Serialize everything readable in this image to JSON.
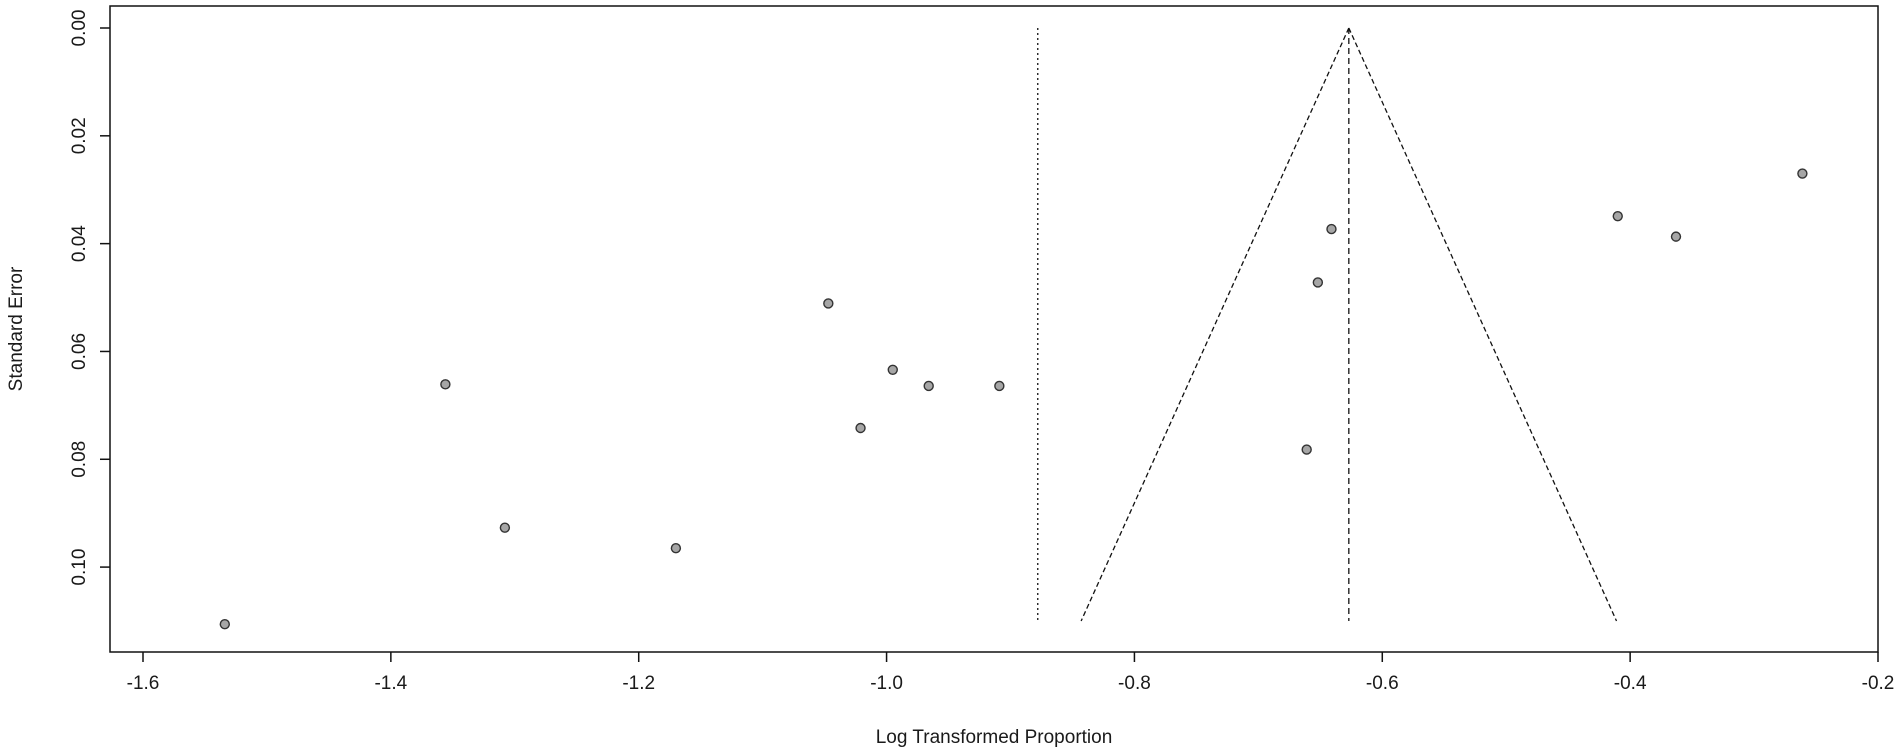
{
  "chart_data": {
    "type": "scatter",
    "title": "",
    "xlabel": "Log Transformed Proportion",
    "ylabel": "Standard Error",
    "xlim": [
      -1.6,
      -0.2
    ],
    "ylim": [
      0.0,
      0.11
    ],
    "y_reversed": true,
    "grid": false,
    "x_ticks": [
      {
        "value": -1.6,
        "label": "-1.6"
      },
      {
        "value": -1.4,
        "label": "-1.4"
      },
      {
        "value": -1.2,
        "label": "-1.2"
      },
      {
        "value": -1.0,
        "label": "-1.0"
      },
      {
        "value": -0.8,
        "label": "-0.8"
      },
      {
        "value": -0.6,
        "label": "-0.6"
      },
      {
        "value": -0.4,
        "label": "-0.4"
      },
      {
        "value": -0.2,
        "label": "-0.2"
      }
    ],
    "y_ticks": [
      {
        "value": 0.0,
        "label": "0.00"
      },
      {
        "value": 0.02,
        "label": "0.02"
      },
      {
        "value": 0.04,
        "label": "0.04"
      },
      {
        "value": 0.06,
        "label": "0.06"
      },
      {
        "value": 0.08,
        "label": "0.08"
      },
      {
        "value": 0.1,
        "label": "0.10"
      }
    ],
    "points": [
      {
        "x": -1.534,
        "y": 0.1106
      },
      {
        "x": -1.356,
        "y": 0.0661
      },
      {
        "x": -1.308,
        "y": 0.0927
      },
      {
        "x": -1.17,
        "y": 0.0965
      },
      {
        "x": -1.047,
        "y": 0.0511
      },
      {
        "x": -1.021,
        "y": 0.0742
      },
      {
        "x": -0.995,
        "y": 0.0634
      },
      {
        "x": -0.966,
        "y": 0.0664
      },
      {
        "x": -0.909,
        "y": 0.0664
      },
      {
        "x": -0.661,
        "y": 0.0782
      },
      {
        "x": -0.652,
        "y": 0.0472
      },
      {
        "x": -0.641,
        "y": 0.0373
      },
      {
        "x": -0.41,
        "y": 0.0349
      },
      {
        "x": -0.363,
        "y": 0.0387
      },
      {
        "x": -0.261,
        "y": 0.027
      }
    ],
    "reference_lines": {
      "dotted_vertical_x": -0.878,
      "dashed_vertical_x": -0.627,
      "funnel_apex": {
        "x": -0.627,
        "y": 0.0
      },
      "funnel_base_y": 0.11,
      "funnel_base_left_x": -0.843,
      "funnel_base_right_x": -0.411
    },
    "colors": {
      "point_fill": "#a6a6a6",
      "point_stroke": "#333333",
      "line": "#111111"
    }
  }
}
